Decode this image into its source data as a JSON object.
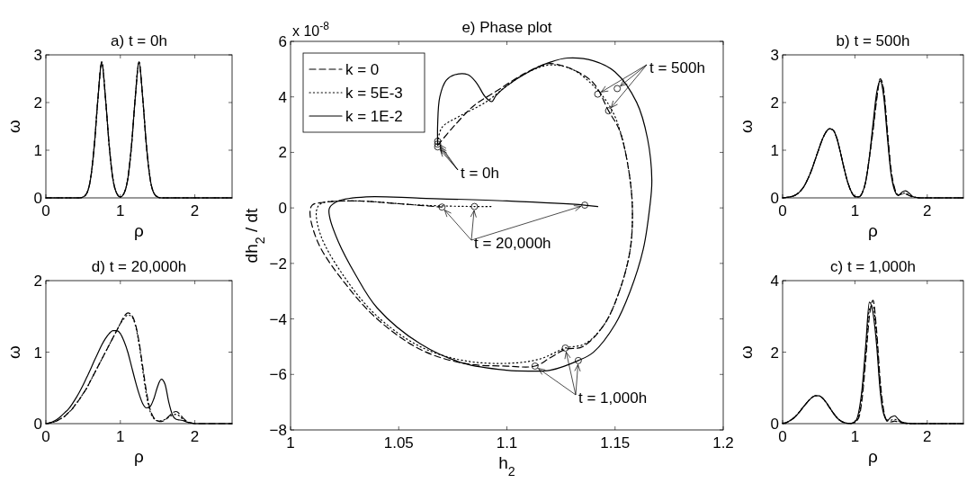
{
  "chart_data": [
    {
      "type": "line",
      "title": "a) t = 0h",
      "xlabel": "ρ",
      "ylabel": "ω",
      "xlim": [
        0,
        2.5
      ],
      "xticks": [
        0,
        1,
        2
      ],
      "ylim": [
        0,
        3
      ],
      "yticks": [
        0,
        1,
        2,
        3
      ],
      "x": [
        0,
        0.05,
        0.1,
        0.15,
        0.2,
        0.25,
        0.3,
        0.35,
        0.4,
        0.45,
        0.5,
        0.55,
        0.6,
        0.65,
        0.7,
        0.75,
        0.8,
        0.85,
        0.9,
        0.95,
        1,
        1.05,
        1.1,
        1.15,
        1.2,
        1.25,
        1.3,
        1.35,
        1.4,
        1.45,
        1.5,
        1.55,
        1.6,
        1.65,
        1.7,
        1.75,
        1.8,
        1.85,
        1.9,
        1.95,
        2,
        2.5
      ],
      "series": [
        {
          "color": "#000000",
          "line_style": "dashed",
          "values": [
            0,
            0,
            0,
            0,
            0,
            0,
            0,
            0,
            0,
            0,
            0.02,
            0.1,
            0.4,
            1.1,
            2.1,
            2.85,
            2.1,
            1.1,
            0.4,
            0.1,
            0.02,
            0.1,
            0.4,
            1.1,
            2.1,
            2.85,
            2.1,
            1.1,
            0.4,
            0.1,
            0.02,
            0,
            0,
            0,
            0,
            0,
            0,
            0,
            0,
            0,
            0,
            0
          ]
        },
        {
          "color": "#000000",
          "line_style": "dotted",
          "values": [
            0,
            0,
            0,
            0,
            0,
            0,
            0,
            0,
            0,
            0,
            0.02,
            0.1,
            0.4,
            1.1,
            2.1,
            2.85,
            2.1,
            1.1,
            0.4,
            0.1,
            0.02,
            0.1,
            0.4,
            1.1,
            2.1,
            2.85,
            2.1,
            1.1,
            0.4,
            0.1,
            0.02,
            0,
            0,
            0,
            0,
            0,
            0,
            0,
            0,
            0,
            0,
            0
          ]
        },
        {
          "color": "#000000",
          "line_style": "solid",
          "values": [
            0,
            0,
            0,
            0,
            0,
            0,
            0,
            0,
            0,
            0,
            0.02,
            0.1,
            0.4,
            1.1,
            2.1,
            2.85,
            2.1,
            1.1,
            0.4,
            0.1,
            0.02,
            0.1,
            0.4,
            1.1,
            2.1,
            2.85,
            2.1,
            1.1,
            0.4,
            0.1,
            0.02,
            0,
            0,
            0,
            0,
            0,
            0,
            0,
            0,
            0,
            0,
            0
          ]
        }
      ]
    },
    {
      "type": "line",
      "title": "e) Phase plot",
      "xlabel": "h$_{2}$",
      "ylabel": "dh$_{2}$ / dt",
      "xlim": [
        1,
        1.2
      ],
      "xticks": [
        1,
        1.05,
        1.1,
        1.15,
        1.2
      ],
      "ylim": [
        -8,
        6
      ],
      "yticks": [
        -8,
        -6,
        -4,
        -2,
        0,
        2,
        4,
        6
      ],
      "legend": "top left",
      "annotations": [
        "x 10$^{-8}$",
        {
          "text": "t = 500h",
          "x": 1.142,
          "y": 4.1
        },
        {
          "text": "t = 0h",
          "x": 1.068,
          "y": 2.2
        },
        {
          "text": "t = 20,000h",
          "x": 1.07,
          "y": 0.03
        },
        {
          "text": "t = 1,000h",
          "x": 1.113,
          "y": -5.7
        }
      ],
      "series": [
        {
          "name": "k = 0",
          "color": "#000000",
          "line_style": "dashed",
          "x": [
            1.068,
            1.075,
            1.085,
            1.095,
            1.105,
            1.115,
            1.12,
            1.13,
            1.14,
            1.147,
            1.152,
            1.156,
            1.158,
            1.157,
            1.152,
            1.145,
            1.135,
            1.127,
            1.12,
            1.113,
            1.1,
            1.08,
            1.06,
            1.04,
            1.025,
            1.013,
            1.009,
            1.01,
            1.015,
            1.03,
            1.05,
            1.07
          ],
          "values": [
            2.25,
            2.9,
            3.7,
            4.2,
            4.7,
            5.1,
            5.2,
            5,
            4.5,
            3.5,
            2.8,
            1.5,
            0,
            -1.5,
            -3,
            -4.2,
            -5,
            -5.1,
            -5.4,
            -5.7,
            -5.7,
            -5.6,
            -5.1,
            -4,
            -2.7,
            -1.3,
            -0.2,
            0.1,
            0.2,
            0.25,
            0.15,
            0.03
          ]
        },
        {
          "name": "k = 5E-3",
          "color": "#000000",
          "line_style": "dotted",
          "x": [
            1.068,
            1.07,
            1.078,
            1.09,
            1.1,
            1.11,
            1.12,
            1.13,
            1.14,
            1.148,
            1.153,
            1.157,
            1.158,
            1.157,
            1.152,
            1.145,
            1.136,
            1.127,
            1.115,
            1.1,
            1.08,
            1.06,
            1.04,
            1.025,
            1.014,
            1.012,
            1.014,
            1.03,
            1.06,
            1.085,
            1.093
          ],
          "values": [
            2.35,
            2.9,
            3.3,
            3.8,
            4.4,
            4.9,
            5.15,
            5,
            4.4,
            3.6,
            2.6,
            1,
            0,
            -1.5,
            -3,
            -4.2,
            -4.9,
            -5.05,
            -5.45,
            -5.6,
            -5.5,
            -5,
            -3.9,
            -2.5,
            -1,
            -0.1,
            0.15,
            0.25,
            0.1,
            0.05,
            0.05
          ]
        },
        {
          "name": "k = 1E-2",
          "color": "#000000",
          "line_style": "solid",
          "x": [
            1.068,
            1.068,
            1.069,
            1.072,
            1.076,
            1.082,
            1.086,
            1.09,
            1.093,
            1.095,
            1.1,
            1.11,
            1.12,
            1.128,
            1.14,
            1.15,
            1.16,
            1.165,
            1.167,
            1.166,
            1.163,
            1.157,
            1.15,
            1.14,
            1.133,
            1.12,
            1.11,
            1.1,
            1.08,
            1.06,
            1.04,
            1.03,
            1.022,
            1.018,
            1.018,
            1.022,
            1.035,
            1.06,
            1.1,
            1.136,
            1.142
          ],
          "values": [
            2.3,
            3,
            4,
            4.6,
            4.8,
            4.8,
            4.5,
            4,
            3.83,
            4.05,
            4.4,
            4.9,
            5.25,
            5.4,
            5.3,
            4.9,
            3.8,
            2.5,
            1,
            0,
            -1.5,
            -3,
            -4.2,
            -5.2,
            -5.5,
            -5.85,
            -5.88,
            -5.85,
            -5.6,
            -4.9,
            -3.6,
            -2.4,
            -1.2,
            -0.3,
            0,
            0.25,
            0.4,
            0.35,
            0.25,
            0.1,
            0.05
          ]
        },
        {
          "type": "scatter",
          "marker": "circle",
          "color": "#000000",
          "x": [
            1.142,
            1.151,
            1.147
          ],
          "values": [
            4.1,
            4.3,
            3.5
          ]
        },
        {
          "type": "scatter",
          "marker": "circle",
          "color": "#000000",
          "x": [
            1.068,
            1.068,
            1.068
          ],
          "values": [
            2.2,
            2.3,
            2.4
          ]
        },
        {
          "type": "scatter",
          "marker": "circle",
          "color": "#000000",
          "x": [
            1.07,
            1.085,
            1.136
          ],
          "values": [
            0.03,
            0.05,
            0.1
          ]
        },
        {
          "type": "scatter",
          "marker": "circle",
          "color": "#000000",
          "x": [
            1.113,
            1.127,
            1.133
          ],
          "values": [
            -5.7,
            -5.05,
            -5.5
          ]
        }
      ]
    },
    {
      "type": "line",
      "title": "b) t = 500h",
      "xlabel": "ρ",
      "ylabel": "ω",
      "xlim": [
        0,
        2.5
      ],
      "xticks": [
        0,
        1,
        2
      ],
      "ylim": [
        0,
        3
      ],
      "yticks": [
        0,
        1,
        2,
        3
      ],
      "x": [
        0,
        0.05,
        0.1,
        0.15,
        0.2,
        0.25,
        0.3,
        0.35,
        0.4,
        0.45,
        0.5,
        0.55,
        0.6,
        0.65,
        0.7,
        0.75,
        0.8,
        0.85,
        0.9,
        0.95,
        1,
        1.05,
        1.1,
        1.15,
        1.2,
        1.25,
        1.3,
        1.35,
        1.4,
        1.45,
        1.5,
        1.55,
        1.6,
        1.65,
        1.7,
        1.75,
        1.8,
        1.85,
        1.9,
        1.95,
        2,
        2.5
      ],
      "series": [
        {
          "color": "#000000",
          "line_style": "dashed",
          "values": [
            0,
            0.01,
            0.02,
            0.04,
            0.08,
            0.15,
            0.25,
            0.4,
            0.58,
            0.8,
            1.02,
            1.23,
            1.38,
            1.45,
            1.42,
            1.25,
            0.95,
            0.62,
            0.33,
            0.13,
            0.03,
            0.02,
            0.1,
            0.35,
            0.85,
            1.4,
            2.05,
            2.5,
            2.25,
            1.4,
            0.6,
            0.2,
            0.06,
            0.08,
            0.08,
            0.05,
            0.02,
            0.01,
            0,
            0,
            0,
            0
          ]
        },
        {
          "color": "#000000",
          "line_style": "dotted",
          "values": [
            0,
            0.01,
            0.02,
            0.04,
            0.08,
            0.15,
            0.25,
            0.4,
            0.58,
            0.8,
            1.02,
            1.23,
            1.38,
            1.45,
            1.42,
            1.25,
            0.95,
            0.62,
            0.33,
            0.13,
            0.03,
            0.02,
            0.1,
            0.35,
            0.85,
            1.45,
            2.1,
            2.48,
            2.2,
            1.35,
            0.55,
            0.18,
            0.06,
            0.09,
            0.1,
            0.06,
            0.02,
            0.01,
            0,
            0,
            0,
            0
          ]
        },
        {
          "color": "#000000",
          "line_style": "solid",
          "values": [
            0,
            0.01,
            0.02,
            0.04,
            0.08,
            0.15,
            0.25,
            0.4,
            0.58,
            0.8,
            1.02,
            1.23,
            1.38,
            1.45,
            1.42,
            1.25,
            0.95,
            0.62,
            0.33,
            0.13,
            0.03,
            0.02,
            0.1,
            0.35,
            0.85,
            1.55,
            2.2,
            2.45,
            2.1,
            1.25,
            0.5,
            0.15,
            0.05,
            0.12,
            0.15,
            0.1,
            0.03,
            0.01,
            0,
            0,
            0,
            0
          ]
        }
      ]
    },
    {
      "type": "line",
      "title": "d) t = 20,000h",
      "xlabel": "ρ",
      "ylabel": "ω",
      "xlim": [
        0,
        2.5
      ],
      "xticks": [
        0,
        1,
        2
      ],
      "ylim": [
        0,
        2
      ],
      "yticks": [
        0,
        1,
        2
      ],
      "x": [
        0,
        0.05,
        0.1,
        0.15,
        0.2,
        0.25,
        0.3,
        0.35,
        0.4,
        0.45,
        0.5,
        0.55,
        0.6,
        0.65,
        0.7,
        0.75,
        0.8,
        0.85,
        0.9,
        0.95,
        1,
        1.05,
        1.1,
        1.15,
        1.2,
        1.25,
        1.3,
        1.35,
        1.4,
        1.45,
        1.5,
        1.55,
        1.6,
        1.65,
        1.7,
        1.75,
        1.8,
        1.85,
        1.9,
        1.95,
        2,
        2.5
      ],
      "series": [
        {
          "color": "#000000",
          "line_style": "dashed",
          "values": [
            0,
            0.01,
            0.02,
            0.04,
            0.07,
            0.1,
            0.15,
            0.2,
            0.27,
            0.34,
            0.42,
            0.5,
            0.6,
            0.7,
            0.8,
            0.9,
            1,
            1.1,
            1.2,
            1.3,
            1.4,
            1.5,
            1.55,
            1.52,
            1.4,
            1.15,
            0.8,
            0.45,
            0.2,
            0.08,
            0.04,
            0.03,
            0.05,
            0.1,
            0.15,
            0.17,
            0.13,
            0.07,
            0.03,
            0.01,
            0,
            0
          ]
        },
        {
          "color": "#000000",
          "line_style": "dotted",
          "values": [
            null,
            0.01,
            0.02,
            0.04,
            0.07,
            0.1,
            0.15,
            0.2,
            0.27,
            0.34,
            0.42,
            0.5,
            0.6,
            0.7,
            0.8,
            0.9,
            1,
            1.1,
            1.2,
            1.3,
            1.4,
            1.47,
            1.52,
            1.5,
            1.38,
            1.12,
            0.75,
            0.4,
            0.17,
            0.07,
            0.04,
            0.04,
            0.06,
            0.09,
            0.12,
            0.13,
            0.1,
            0.05,
            0.02,
            0.01,
            0,
            null
          ]
        },
        {
          "color": "#000000",
          "line_style": "solid",
          "values": [
            0,
            0.01,
            0.03,
            0.06,
            0.1,
            0.15,
            0.2,
            0.27,
            0.35,
            0.44,
            0.54,
            0.65,
            0.76,
            0.88,
            0.99,
            1.1,
            1.19,
            1.26,
            1.3,
            1.3,
            1.26,
            1.15,
            1,
            0.8,
            0.6,
            0.42,
            0.28,
            0.22,
            0.24,
            0.35,
            0.52,
            0.62,
            0.55,
            0.3,
            0.12,
            0.06,
            0.05,
            0.04,
            0.02,
            0.01,
            0,
            0
          ]
        }
      ]
    },
    {
      "type": "line",
      "title": "c) t = 1,000h",
      "xlabel": "ρ",
      "ylabel": "ω",
      "xlim": [
        0,
        2.5
      ],
      "xticks": [
        0,
        1,
        2
      ],
      "ylim": [
        0,
        4
      ],
      "yticks": [
        0,
        2,
        4
      ],
      "x": [
        0,
        0.05,
        0.1,
        0.15,
        0.2,
        0.25,
        0.3,
        0.35,
        0.4,
        0.45,
        0.5,
        0.55,
        0.6,
        0.65,
        0.7,
        0.75,
        0.8,
        0.85,
        0.9,
        0.95,
        1,
        1.05,
        1.1,
        1.15,
        1.2,
        1.25,
        1.3,
        1.35,
        1.4,
        1.45,
        1.5,
        1.55,
        1.6,
        1.65,
        1.7,
        1.75,
        1.8,
        1.85,
        1.9,
        1.95,
        2,
        2.5
      ],
      "series": [
        {
          "color": "#000000",
          "line_style": "dashed",
          "values": [
            0.01,
            0.03,
            0.08,
            0.15,
            0.25,
            0.37,
            0.5,
            0.62,
            0.72,
            0.78,
            0.78,
            0.72,
            0.6,
            0.45,
            0.3,
            0.17,
            0.08,
            0.03,
            0.01,
            0.01,
            0.05,
            0.15,
            0.7,
            1.8,
            3,
            3.45,
            2.6,
            1.2,
            0.35,
            0.06,
            0.05,
            0.07,
            0.05,
            0.02,
            0.01,
            0,
            0,
            0,
            0,
            0,
            0,
            0
          ]
        },
        {
          "color": "#000000",
          "line_style": "dotted",
          "values": [
            0.01,
            0.03,
            0.08,
            0.15,
            0.25,
            0.37,
            0.5,
            0.62,
            0.72,
            0.78,
            0.78,
            0.72,
            0.6,
            0.45,
            0.3,
            0.17,
            0.08,
            0.03,
            0.01,
            0.01,
            0.05,
            0.2,
            0.85,
            2,
            3.2,
            3.3,
            2.4,
            1.05,
            0.3,
            0.08,
            0.1,
            0.12,
            0.08,
            0.03,
            0.01,
            0,
            0,
            0,
            0,
            0,
            0,
            0
          ]
        },
        {
          "color": "#000000",
          "line_style": "solid",
          "values": [
            0.01,
            0.03,
            0.08,
            0.15,
            0.25,
            0.37,
            0.5,
            0.62,
            0.72,
            0.78,
            0.78,
            0.72,
            0.6,
            0.45,
            0.3,
            0.17,
            0.08,
            0.03,
            0.01,
            0.01,
            0.05,
            0.3,
            1,
            2.2,
            3.4,
            3.1,
            2.2,
            0.9,
            0.25,
            0.1,
            0.18,
            0.22,
            0.12,
            0.04,
            0.02,
            0.01,
            0,
            0,
            0,
            0,
            0,
            0
          ]
        }
      ]
    }
  ]
}
